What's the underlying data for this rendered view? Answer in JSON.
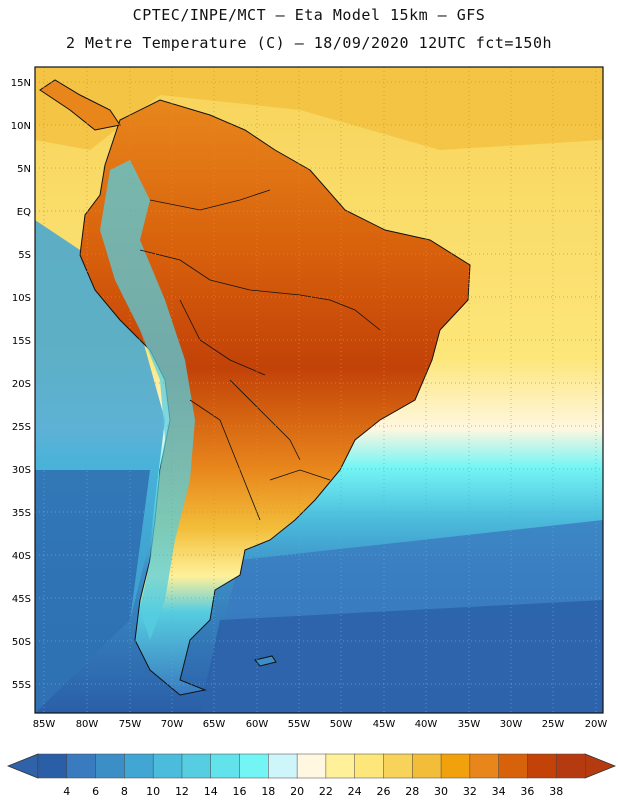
{
  "header": {
    "line1": "CPTEC/INPE/MCT —  Eta Model 15km — GFS",
    "line2": "2 Metre Temperature (C) — 18/09/2020 12UTC fct=150h"
  },
  "map": {
    "lat_labels": [
      "15N",
      "10N",
      "5N",
      "EQ",
      "5S",
      "10S",
      "15S",
      "20S",
      "25S",
      "30S",
      "35S",
      "40S",
      "45S",
      "50S",
      "55S"
    ],
    "lon_labels": [
      "85W",
      "80W",
      "75W",
      "70W",
      "65W",
      "60W",
      "55W",
      "50W",
      "45W",
      "40W",
      "35W",
      "30W",
      "25W",
      "20W"
    ]
  },
  "colorbar": {
    "labels": [
      "4",
      "6",
      "8",
      "10",
      "12",
      "14",
      "16",
      "18",
      "20",
      "22",
      "24",
      "26",
      "28",
      "30",
      "32",
      "34",
      "36",
      "38"
    ],
    "colors": [
      "#2a5fa8",
      "#3a7bbf",
      "#3c8fc6",
      "#41a6d3",
      "#4cbcdc",
      "#56cde0",
      "#62e2ea",
      "#74f5f5",
      "#cdf5fa",
      "#fff7e0",
      "#fff19a",
      "#fde67a",
      "#f7d35a",
      "#f2be3a",
      "#f0a10c",
      "#e8861c",
      "#d8610c",
      "#c24208",
      "#b63a10"
    ],
    "arrow_left_color": "#2f62a8",
    "arrow_right_color": "#b63a10"
  }
}
